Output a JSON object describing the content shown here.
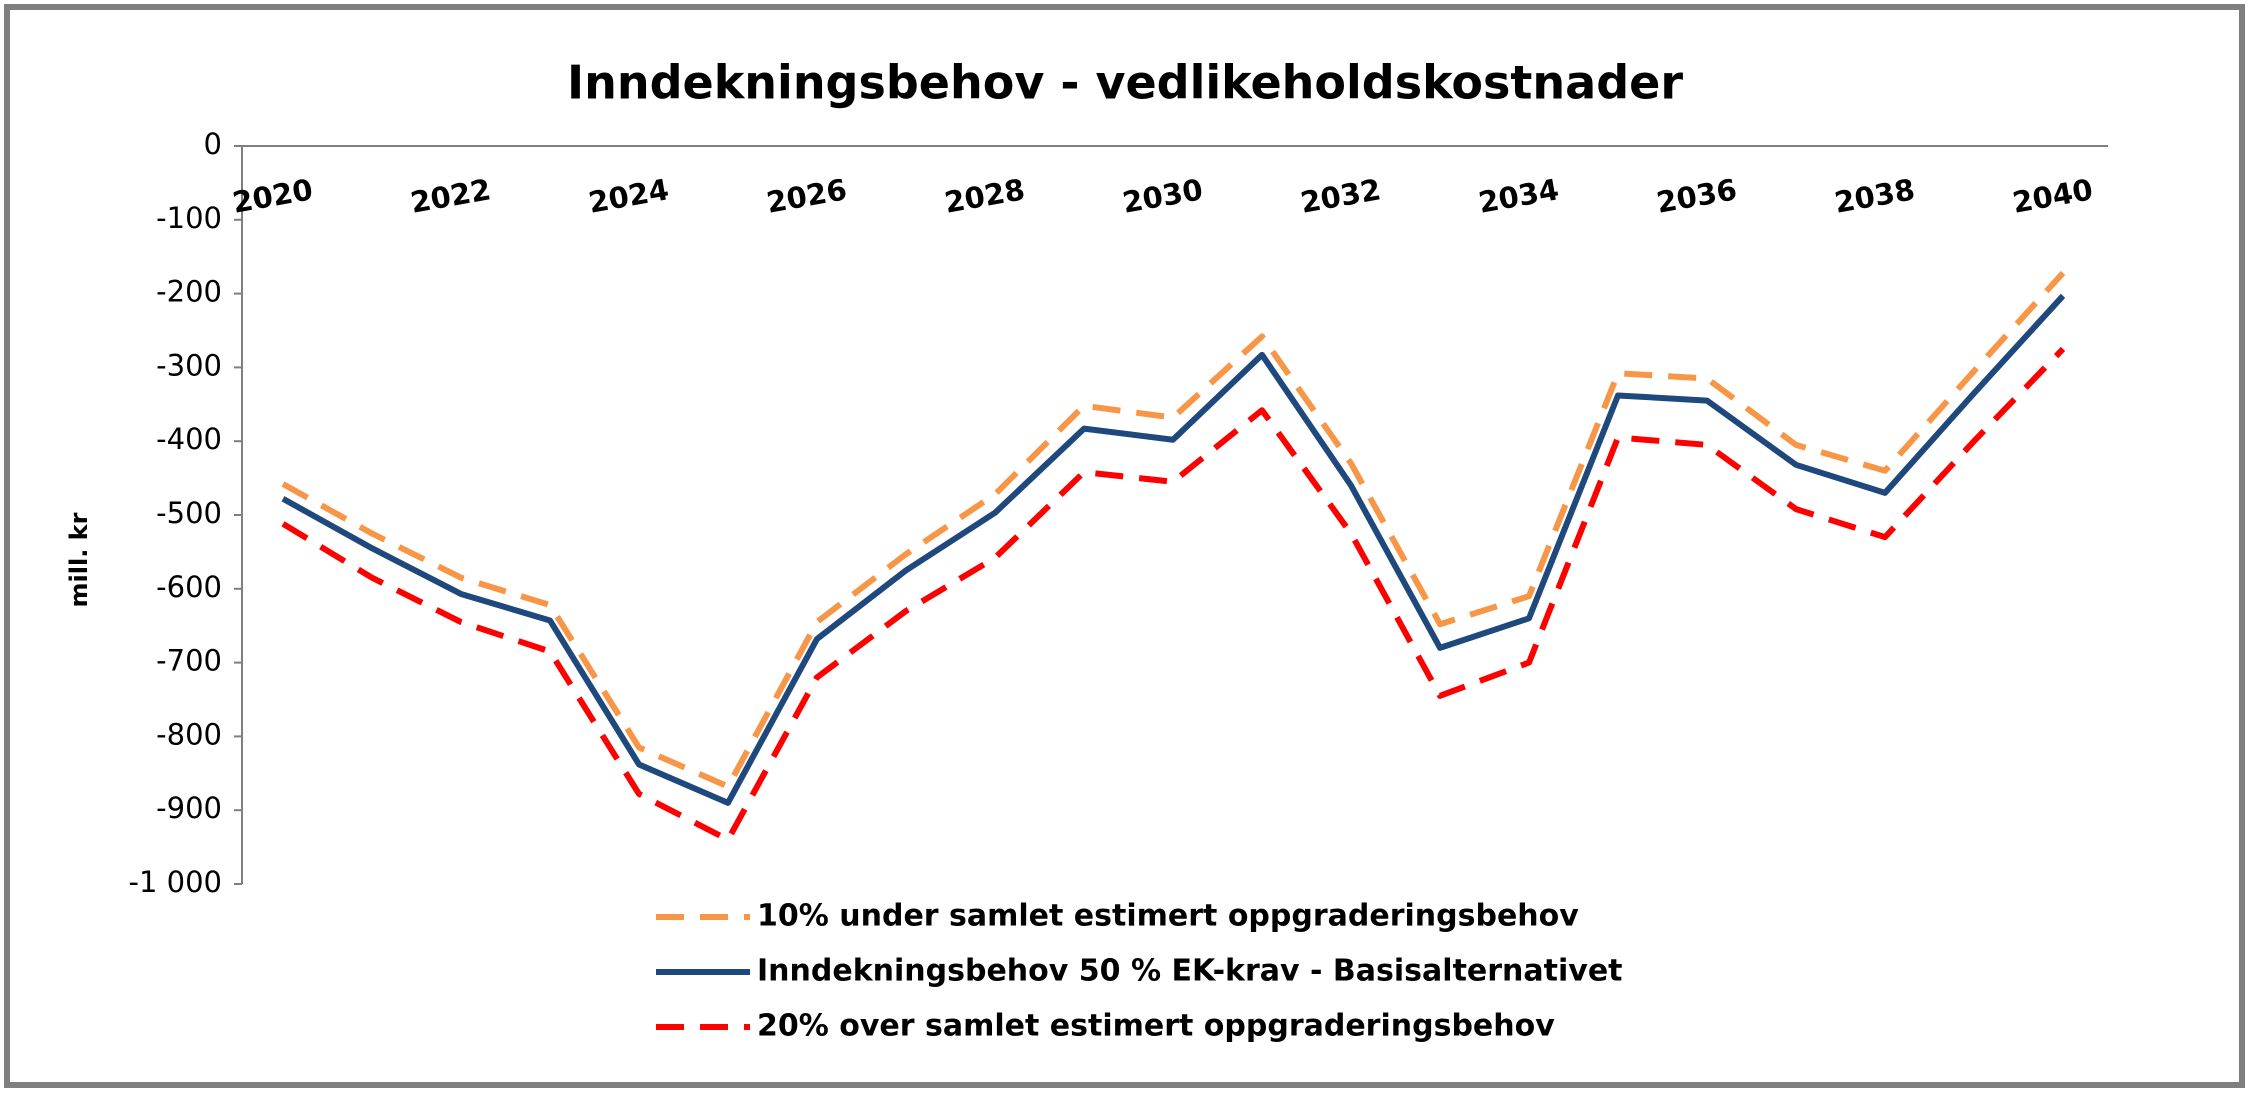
{
  "chart_data": {
    "type": "line",
    "title": "Inndekningsbehov - vedlikeholdskostnader",
    "y_label": "mill. kr",
    "categories": [
      "2020",
      null,
      "2022",
      null,
      "2024",
      null,
      "2026",
      null,
      "2028",
      null,
      "2030",
      null,
      "2032",
      null,
      "2034",
      null,
      "2036",
      null,
      "2038",
      null,
      "2040"
    ],
    "ylim": [
      -1000,
      0
    ],
    "yticks": [
      0,
      -100,
      -200,
      -300,
      -400,
      -500,
      -600,
      -700,
      -800,
      -900,
      {
        "value": -1000,
        "label": "-1 000"
      }
    ],
    "legend": "bottom",
    "series": [
      {
        "name": "10% under samlet estimert oppgraderingsbehov",
        "color": "#f79646",
        "dash": "dashed",
        "values": [
          -458,
          -525,
          -585,
          -622,
          -815,
          -868,
          -645,
          -553,
          -472,
          -352,
          -368,
          -258,
          -430,
          -648,
          -610,
          -308,
          -315,
          -405,
          -440,
          -305,
          -172
        ]
      },
      {
        "name": "Inndekningsbehov 50 % EK-krav - Basisalternativet",
        "color": "#1f497d",
        "dash": "solid",
        "values": [
          -478,
          -545,
          -607,
          -643,
          -838,
          -890,
          -668,
          -575,
          -497,
          -383,
          -398,
          -283,
          -460,
          -680,
          -640,
          -338,
          -345,
          -432,
          -470,
          -335,
          -203
        ]
      },
      {
        "name": "20% over samlet estimert oppgraderingsbehov",
        "color": "#ff0000",
        "dash": "dashed",
        "values": [
          -512,
          -585,
          -645,
          -685,
          -878,
          -940,
          -720,
          -630,
          -558,
          -442,
          -455,
          -358,
          -525,
          -745,
          -700,
          -395,
          -405,
          -492,
          -530,
          -400,
          -275
        ]
      }
    ]
  }
}
